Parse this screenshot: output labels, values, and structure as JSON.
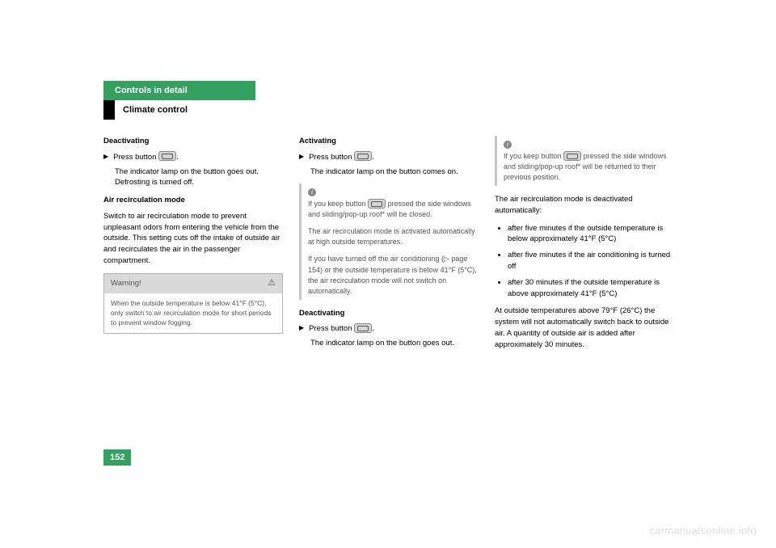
{
  "colors": {
    "accent_green": "#34a160",
    "text": "#000000",
    "muted": "#555555",
    "box_border": "#b5b5b5",
    "box_bg": "#d9d9d9",
    "info_border": "#c6c6c6",
    "watermark": "#dddddd",
    "white": "#ffffff"
  },
  "header": {
    "chapter": "Controls in detail",
    "section": "Climate control"
  },
  "page_number": "152",
  "watermark": "carmanualsonline.info",
  "col1": {
    "h1": "Deactivating",
    "step1": "Press button ",
    "step1_after": ".",
    "step1_result": "The indicator lamp on the button goes out. Defrosting is turned off.",
    "h2": "Air recirculation mode",
    "para1": "Switch to air recirculation mode to prevent unpleasant odors from entering the vehicle from the outside. This setting cuts off the intake of outside air and recirculates the air in the passenger compartment.",
    "warning_title": "Warning!",
    "warning_body": "When the outside temperature is below 41°F (5°C), only switch to air recirculation mode for short periods to prevent window fogging."
  },
  "col2": {
    "h1": "Activating",
    "step1": "Press button ",
    "step1_after": ".",
    "step1_result": "The indicator lamp on the button comes on.",
    "info1a": "If you keep button ",
    "info1b": " pressed the side windows and sliding/pop-up roof* will be closed.",
    "info1c": "The air recirculation mode is activated automatically at high outside tempera­tures.",
    "info1d": "If you have turned off the air condition­ing (▷ page 154) or the outside temperature is below 41°F (5°C), the air recirculation mode will not switch on automatically.",
    "h2": "Deactivating",
    "step2": "Press button ",
    "step2_after": ".",
    "step2_result": "The indicator lamp on the button goes out."
  },
  "col3": {
    "info1a": "If you keep button ",
    "info1b": " pressed the side windows and sliding/pop-up roof* will be returned to their previous posi­tion.",
    "para1": "The air recirculation mode is deactivated automatically:",
    "b1": "after five minutes if the outside temper­ature is below approximately 41°F (5°C)",
    "b2": "after five minutes if the air conditioning is turned off",
    "b3": "after 30 minutes if the outside temper­ature is above approximately 41°F (5°C)",
    "para2": "At outside temperatures above 79°F (26°C) the system will not automatically switch back to outside air. A quantity of outside air is added after approximately 30 minutes."
  }
}
